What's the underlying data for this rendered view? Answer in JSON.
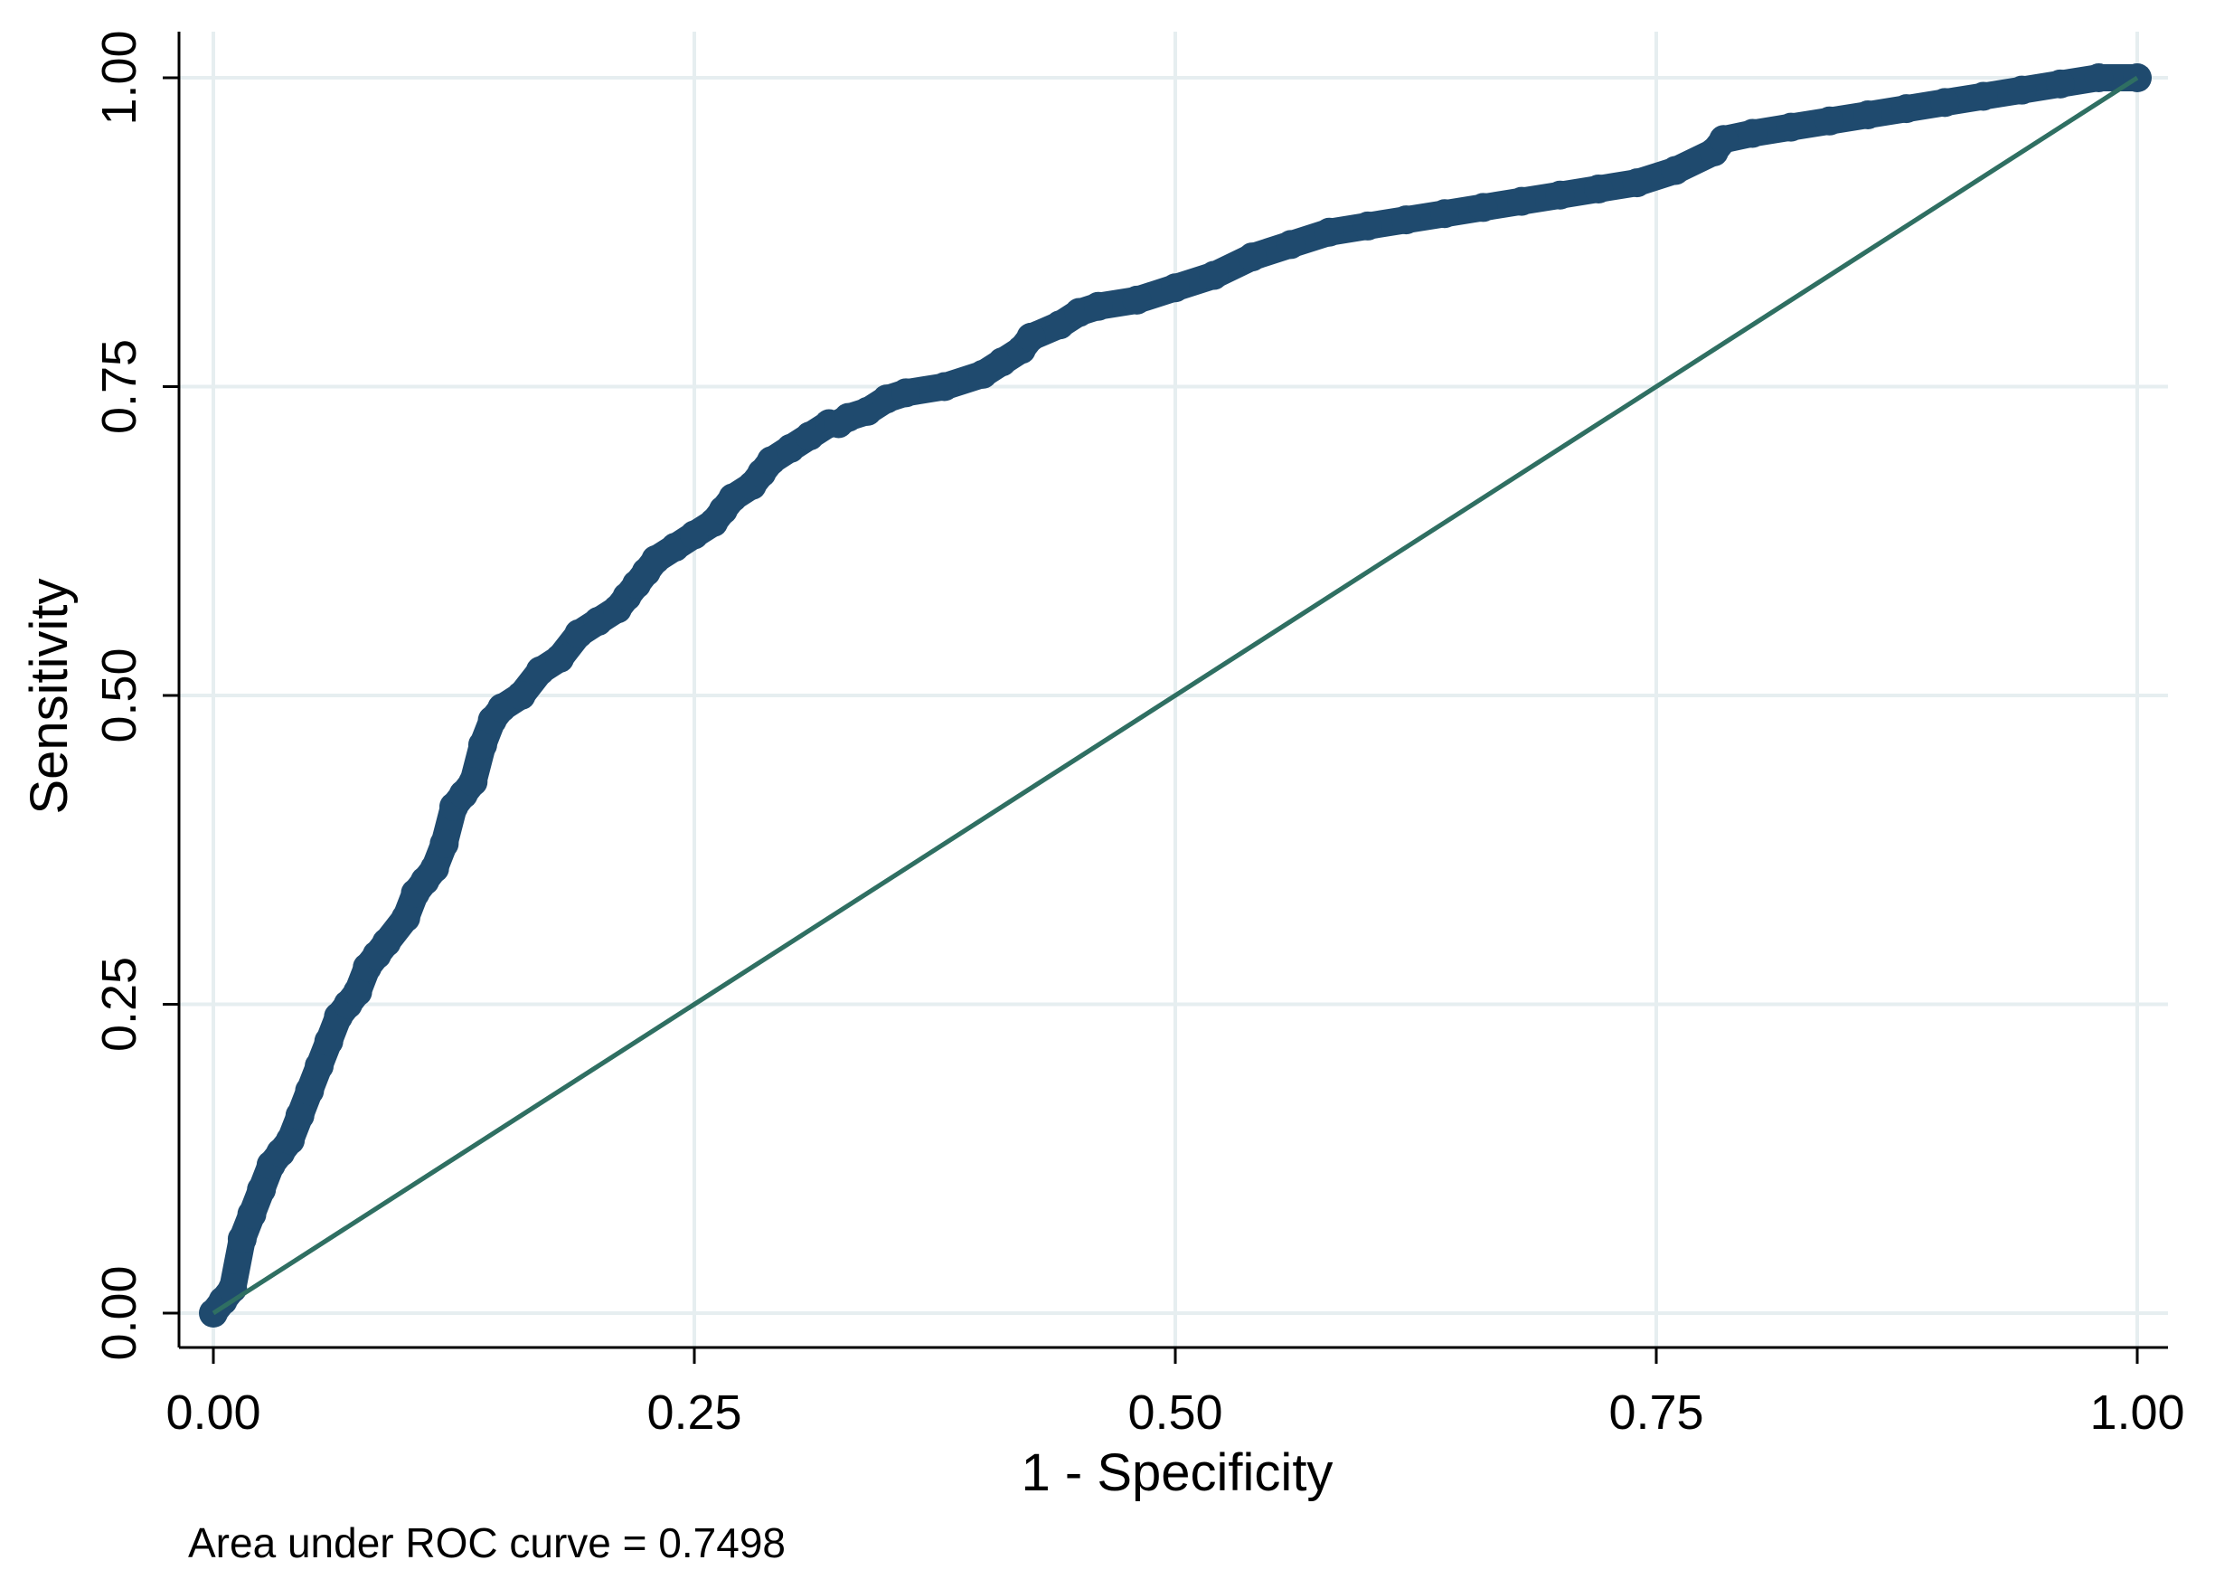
{
  "chart_data": {
    "type": "line",
    "xlabel": "1 - Specificity",
    "ylabel": "Sensitivity",
    "xlim": [
      0,
      1
    ],
    "ylim": [
      0,
      1
    ],
    "x_ticks": [
      "0.00",
      "0.25",
      "0.50",
      "0.75",
      "1.00"
    ],
    "y_ticks": [
      "0.00",
      "0.25",
      "0.50",
      "0.75",
      "1.00"
    ],
    "grid": true,
    "note": "Area under ROC curve = 0.7498",
    "colors": {
      "roc": "#1f4a6e",
      "reference": "#2f6f62",
      "grid": "#e6eef0"
    },
    "series": [
      {
        "type": "roc-curve",
        "x": [
          0.0,
          0.005,
          0.01,
          0.015,
          0.02,
          0.025,
          0.03,
          0.035,
          0.04,
          0.045,
          0.05,
          0.055,
          0.06,
          0.065,
          0.07,
          0.075,
          0.08,
          0.085,
          0.09,
          0.1,
          0.105,
          0.11,
          0.115,
          0.12,
          0.125,
          0.13,
          0.135,
          0.14,
          0.145,
          0.15,
          0.16,
          0.17,
          0.18,
          0.19,
          0.2,
          0.21,
          0.215,
          0.22,
          0.225,
          0.23,
          0.24,
          0.25,
          0.26,
          0.265,
          0.27,
          0.28,
          0.285,
          0.29,
          0.3,
          0.31,
          0.32,
          0.325,
          0.33,
          0.34,
          0.35,
          0.36,
          0.38,
          0.4,
          0.41,
          0.42,
          0.425,
          0.44,
          0.45,
          0.46,
          0.48,
          0.5,
          0.52,
          0.54,
          0.56,
          0.58,
          0.6,
          0.62,
          0.64,
          0.66,
          0.68,
          0.7,
          0.72,
          0.74,
          0.76,
          0.78,
          0.785,
          0.8,
          0.82,
          0.84,
          0.86,
          0.88,
          0.9,
          0.92,
          0.94,
          0.96,
          0.98,
          1.0
        ],
        "y": [
          0.0,
          0.01,
          0.02,
          0.06,
          0.08,
          0.1,
          0.12,
          0.13,
          0.14,
          0.16,
          0.18,
          0.2,
          0.22,
          0.24,
          0.25,
          0.26,
          0.28,
          0.29,
          0.3,
          0.32,
          0.34,
          0.35,
          0.36,
          0.38,
          0.41,
          0.42,
          0.43,
          0.46,
          0.48,
          0.49,
          0.5,
          0.52,
          0.53,
          0.55,
          0.56,
          0.57,
          0.58,
          0.59,
          0.6,
          0.61,
          0.62,
          0.63,
          0.64,
          0.65,
          0.66,
          0.67,
          0.68,
          0.69,
          0.7,
          0.71,
          0.72,
          0.72,
          0.725,
          0.73,
          0.74,
          0.745,
          0.75,
          0.76,
          0.77,
          0.78,
          0.79,
          0.8,
          0.81,
          0.815,
          0.82,
          0.83,
          0.84,
          0.855,
          0.865,
          0.875,
          0.88,
          0.885,
          0.89,
          0.895,
          0.9,
          0.905,
          0.91,
          0.915,
          0.925,
          0.94,
          0.95,
          0.955,
          0.96,
          0.965,
          0.97,
          0.975,
          0.98,
          0.985,
          0.99,
          0.995,
          1.0,
          1.0
        ]
      },
      {
        "type": "reference-line",
        "x": [
          0,
          1
        ],
        "y": [
          0,
          1
        ]
      }
    ]
  }
}
